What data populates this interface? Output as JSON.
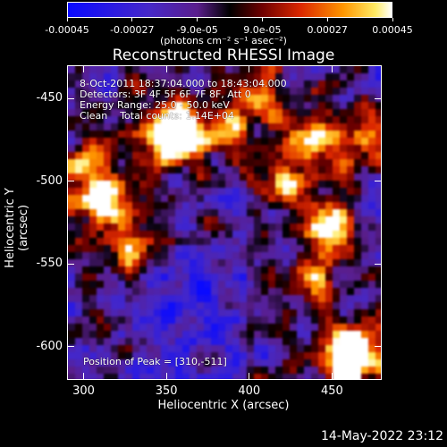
{
  "chart_data": {
    "type": "heatmap",
    "title": "Reconstructed RHESSI Image",
    "xlabel": "Heliocentric X (arcsec)",
    "ylabel": "Heliocentric Y (arcsec)",
    "xlim": [
      290,
      480
    ],
    "ylim": [
      -620,
      -430
    ],
    "x_ticks": [
      "300",
      "350",
      "400",
      "450"
    ],
    "y_ticks": [
      "-450",
      "-500",
      "-550",
      "-600"
    ],
    "colorbar": {
      "ticks": [
        "-0.00045",
        "-0.00027",
        "-9.0e-05",
        "9.0e-05",
        "0.00027",
        "0.00045"
      ],
      "range": [
        -0.00045,
        0.00045
      ],
      "units": "(photons cm⁻² s⁻¹ asec⁻²)"
    },
    "peak": [
      310,
      -511
    ],
    "bright_sources": [
      {
        "x": 310,
        "y": -511,
        "level": 1.0
      },
      {
        "x": 357,
        "y": -465,
        "level": 0.75
      },
      {
        "x": 352,
        "y": -475,
        "level": 0.7
      },
      {
        "x": 438,
        "y": -475,
        "level": 0.8
      },
      {
        "x": 448,
        "y": -528,
        "level": 0.85
      },
      {
        "x": 458,
        "y": -612,
        "level": 0.95
      },
      {
        "x": 465,
        "y": -600,
        "level": 0.7
      },
      {
        "x": 300,
        "y": -490,
        "level": 0.6
      },
      {
        "x": 330,
        "y": -540,
        "level": 0.55
      },
      {
        "x": 385,
        "y": -470,
        "level": 0.55
      },
      {
        "x": 420,
        "y": -500,
        "level": 0.55
      },
      {
        "x": 470,
        "y": -470,
        "level": 0.55
      },
      {
        "x": 435,
        "y": -560,
        "level": 0.5
      },
      {
        "x": 405,
        "y": -450,
        "level": 0.45
      }
    ],
    "dim_region": {
      "x": [
        330,
        400
      ],
      "y": [
        -620,
        -540
      ]
    }
  },
  "info": {
    "time_range": "8-Oct-2011 18:37:04.000 to 18:43:04.000",
    "detectors": "Detectors: 3F 4F 5F 6F 7F 8F, Att 0",
    "energy": "Energy Range: 25.0 - 50.0 keV",
    "clean": "Clean    Total counts: 1.14E+04",
    "peak_text": "Position of Peak = [310,-511]"
  },
  "datestamp": "14-May-2022 23:12"
}
